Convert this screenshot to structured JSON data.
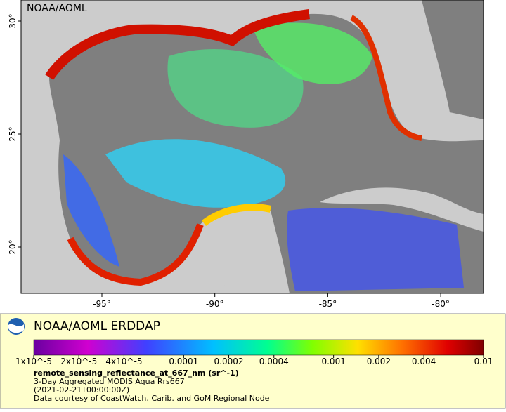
{
  "map": {
    "label": "NOAA/AOML",
    "lon_ticks": [
      "-95°",
      "-90°",
      "-85°",
      "-80°"
    ],
    "lat_ticks": [
      "30°",
      "25°",
      "20°"
    ]
  },
  "legend": {
    "title": "NOAA/AOML ERDDAP",
    "colorbar": {
      "scale": "log",
      "range": [
        1e-05,
        0.01
      ],
      "ticks": [
        {
          "value": 1e-05,
          "label": "1x10^-5"
        },
        {
          "value": 2e-05,
          "label": "2x10^-5"
        },
        {
          "value": 4e-05,
          "label": "4x10^-5"
        },
        {
          "value": 0.0001,
          "label": "0.0001"
        },
        {
          "value": 0.0002,
          "label": "0.0002"
        },
        {
          "value": 0.0004,
          "label": "0.0004"
        },
        {
          "value": 0.001,
          "label": "0.001"
        },
        {
          "value": 0.002,
          "label": "0.002"
        },
        {
          "value": 0.004,
          "label": "0.004"
        },
        {
          "value": 0.01,
          "label": "0.01"
        }
      ]
    },
    "variable": "remote_sensing_reflectance_at_667_nm (sr^-1)",
    "description": "3-Day Aggregated MODIS Aqua Rrs667",
    "time": "(2021-02-21T00:00:00Z)",
    "credit": "Data courtesy of CoastWatch, Carib. and GoM Regional Node"
  }
}
